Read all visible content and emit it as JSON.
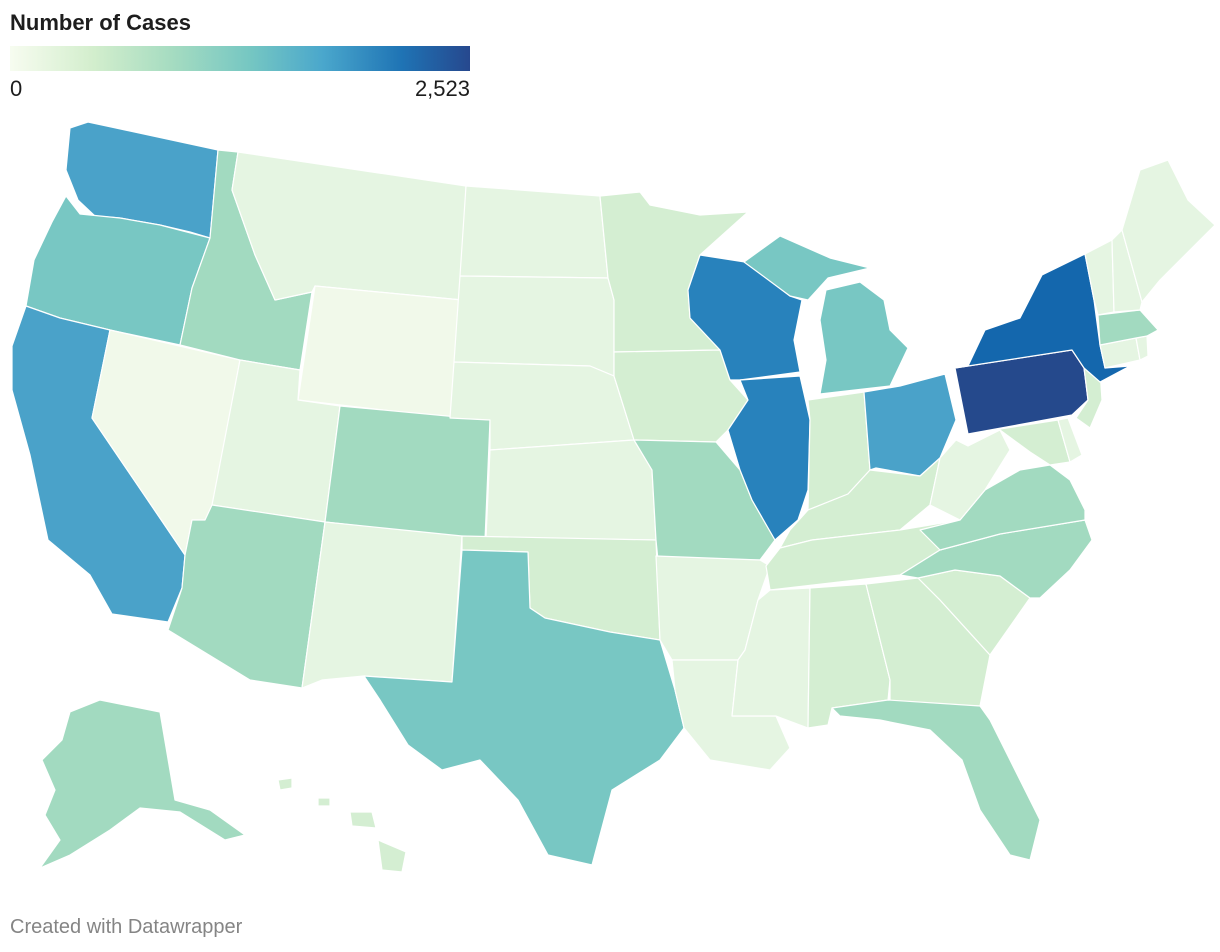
{
  "legend": {
    "title": "Number of Cases",
    "min_label": "0",
    "max_label": "2,523",
    "min_value": 0,
    "max_value": 2523
  },
  "credit": "Created with Datawrapper",
  "colors": {
    "c0": "#f1f9ea",
    "c1": "#e5f5e2",
    "c2": "#d4eed2",
    "c3": "#a2dac0",
    "c4": "#78c7c3",
    "c5": "#4aa2c9",
    "c6": "#2882bc",
    "c7": "#1467ad",
    "c8": "#25498c"
  },
  "states": [
    {
      "id": "WA",
      "shade": "c5"
    },
    {
      "id": "OR",
      "shade": "c4"
    },
    {
      "id": "CA",
      "shade": "c5"
    },
    {
      "id": "NV",
      "shade": "c0"
    },
    {
      "id": "ID",
      "shade": "c3"
    },
    {
      "id": "MT",
      "shade": "c1"
    },
    {
      "id": "WY",
      "shade": "c0"
    },
    {
      "id": "UT",
      "shade": "c1"
    },
    {
      "id": "AZ",
      "shade": "c3"
    },
    {
      "id": "CO",
      "shade": "c3"
    },
    {
      "id": "NM",
      "shade": "c1"
    },
    {
      "id": "ND",
      "shade": "c1"
    },
    {
      "id": "SD",
      "shade": "c1"
    },
    {
      "id": "NE",
      "shade": "c1"
    },
    {
      "id": "KS",
      "shade": "c1"
    },
    {
      "id": "OK",
      "shade": "c2"
    },
    {
      "id": "TX",
      "shade": "c4"
    },
    {
      "id": "MN",
      "shade": "c2"
    },
    {
      "id": "IA",
      "shade": "c2"
    },
    {
      "id": "MO",
      "shade": "c3"
    },
    {
      "id": "AR",
      "shade": "c1"
    },
    {
      "id": "LA",
      "shade": "c1"
    },
    {
      "id": "WI",
      "shade": "c6"
    },
    {
      "id": "IL",
      "shade": "c6"
    },
    {
      "id": "MI",
      "shade": "c4"
    },
    {
      "id": "IN",
      "shade": "c2"
    },
    {
      "id": "OH",
      "shade": "c5"
    },
    {
      "id": "KY",
      "shade": "c2"
    },
    {
      "id": "TN",
      "shade": "c2"
    },
    {
      "id": "MS",
      "shade": "c1"
    },
    {
      "id": "AL",
      "shade": "c2"
    },
    {
      "id": "GA",
      "shade": "c2"
    },
    {
      "id": "FL",
      "shade": "c3"
    },
    {
      "id": "SC",
      "shade": "c2"
    },
    {
      "id": "NC",
      "shade": "c3"
    },
    {
      "id": "VA",
      "shade": "c3"
    },
    {
      "id": "WV",
      "shade": "c1"
    },
    {
      "id": "MD",
      "shade": "c2"
    },
    {
      "id": "DE",
      "shade": "c1"
    },
    {
      "id": "NJ",
      "shade": "c2"
    },
    {
      "id": "PA",
      "shade": "c8"
    },
    {
      "id": "NY",
      "shade": "c7"
    },
    {
      "id": "CT",
      "shade": "c1"
    },
    {
      "id": "RI",
      "shade": "c1"
    },
    {
      "id": "MA",
      "shade": "c3"
    },
    {
      "id": "VT",
      "shade": "c1"
    },
    {
      "id": "NH",
      "shade": "c1"
    },
    {
      "id": "ME",
      "shade": "c1"
    },
    {
      "id": "AK",
      "shade": "c3"
    },
    {
      "id": "HI",
      "shade": "c2"
    }
  ]
}
